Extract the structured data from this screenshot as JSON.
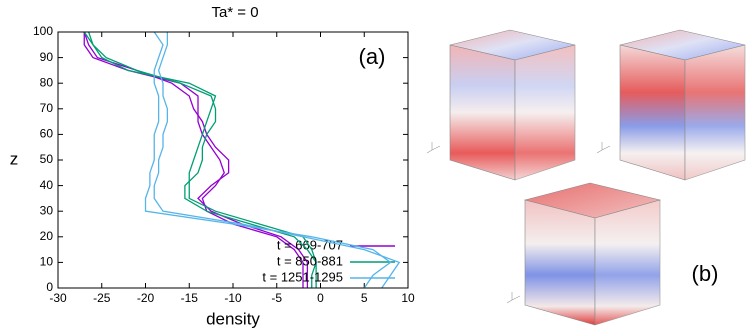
{
  "chart_data": {
    "type": "line",
    "title": "Ta* = 0",
    "x_label": "density",
    "y_label": "z",
    "annotations": [
      "(a)",
      "(b)"
    ],
    "xlim": [
      -30,
      10
    ],
    "xticks": [
      -30,
      -25,
      -20,
      -15,
      -10,
      -5,
      0,
      5,
      10
    ],
    "ylim": [
      0,
      100
    ],
    "yticks": [
      0,
      10,
      20,
      30,
      40,
      50,
      60,
      70,
      80,
      90,
      100
    ],
    "z": [
      0,
      5,
      10,
      15,
      20,
      25,
      30,
      35,
      40,
      45,
      50,
      55,
      60,
      65,
      70,
      75,
      80,
      85,
      90,
      95,
      100
    ],
    "legend": "lower right",
    "series": [
      {
        "name": "t = 669-707",
        "color": "#9400d3",
        "values": [
          [
            -2,
            -2,
            -2,
            -3,
            -5,
            -10,
            -13,
            -13.5,
            -12,
            -11,
            -11.5,
            -12.5,
            -13.5,
            -14,
            -14,
            -14,
            -16,
            -22,
            -26,
            -27,
            -27
          ],
          [
            -1.5,
            -1.5,
            -1.5,
            -2.5,
            -4.5,
            -9,
            -12.5,
            -14,
            -12.5,
            -10.5,
            -10.5,
            -12,
            -13,
            -13.5,
            -14.5,
            -15,
            -17,
            -21,
            -25.5,
            -26.5,
            -27
          ]
        ]
      },
      {
        "name": "t = 850-881",
        "color": "#009e73",
        "values": [
          [
            -0.5,
            -0.5,
            -0.5,
            -1,
            -2,
            -7,
            -12,
            -15,
            -15,
            -15,
            -14.5,
            -14,
            -13.5,
            -13,
            -12.5,
            -12,
            -15,
            -22,
            -25,
            -26,
            -27
          ],
          [
            -1,
            -1,
            -0.5,
            -1.5,
            -3,
            -8,
            -13,
            -15.5,
            -15.5,
            -14,
            -13.5,
            -13.5,
            -13,
            -12,
            -12,
            -12.5,
            -16,
            -21,
            -24.5,
            -26,
            -26.5
          ]
        ]
      },
      {
        "name": "t = 1251-1295",
        "color": "#56b4e9",
        "values": [
          [
            5,
            6,
            8,
            6,
            -1,
            -10,
            -20,
            -20,
            -19.5,
            -19.5,
            -19,
            -19,
            -19,
            -18.5,
            -18.5,
            -18.5,
            -19,
            -19,
            -18.5,
            -18,
            -19
          ],
          [
            7,
            8,
            9,
            5,
            -2,
            -9,
            -18,
            -19,
            -19,
            -18.5,
            -18.5,
            -18,
            -18,
            -17.5,
            -17.5,
            -18,
            -18,
            -18.5,
            -18,
            -17.5,
            -17.5
          ]
        ]
      }
    ]
  }
}
